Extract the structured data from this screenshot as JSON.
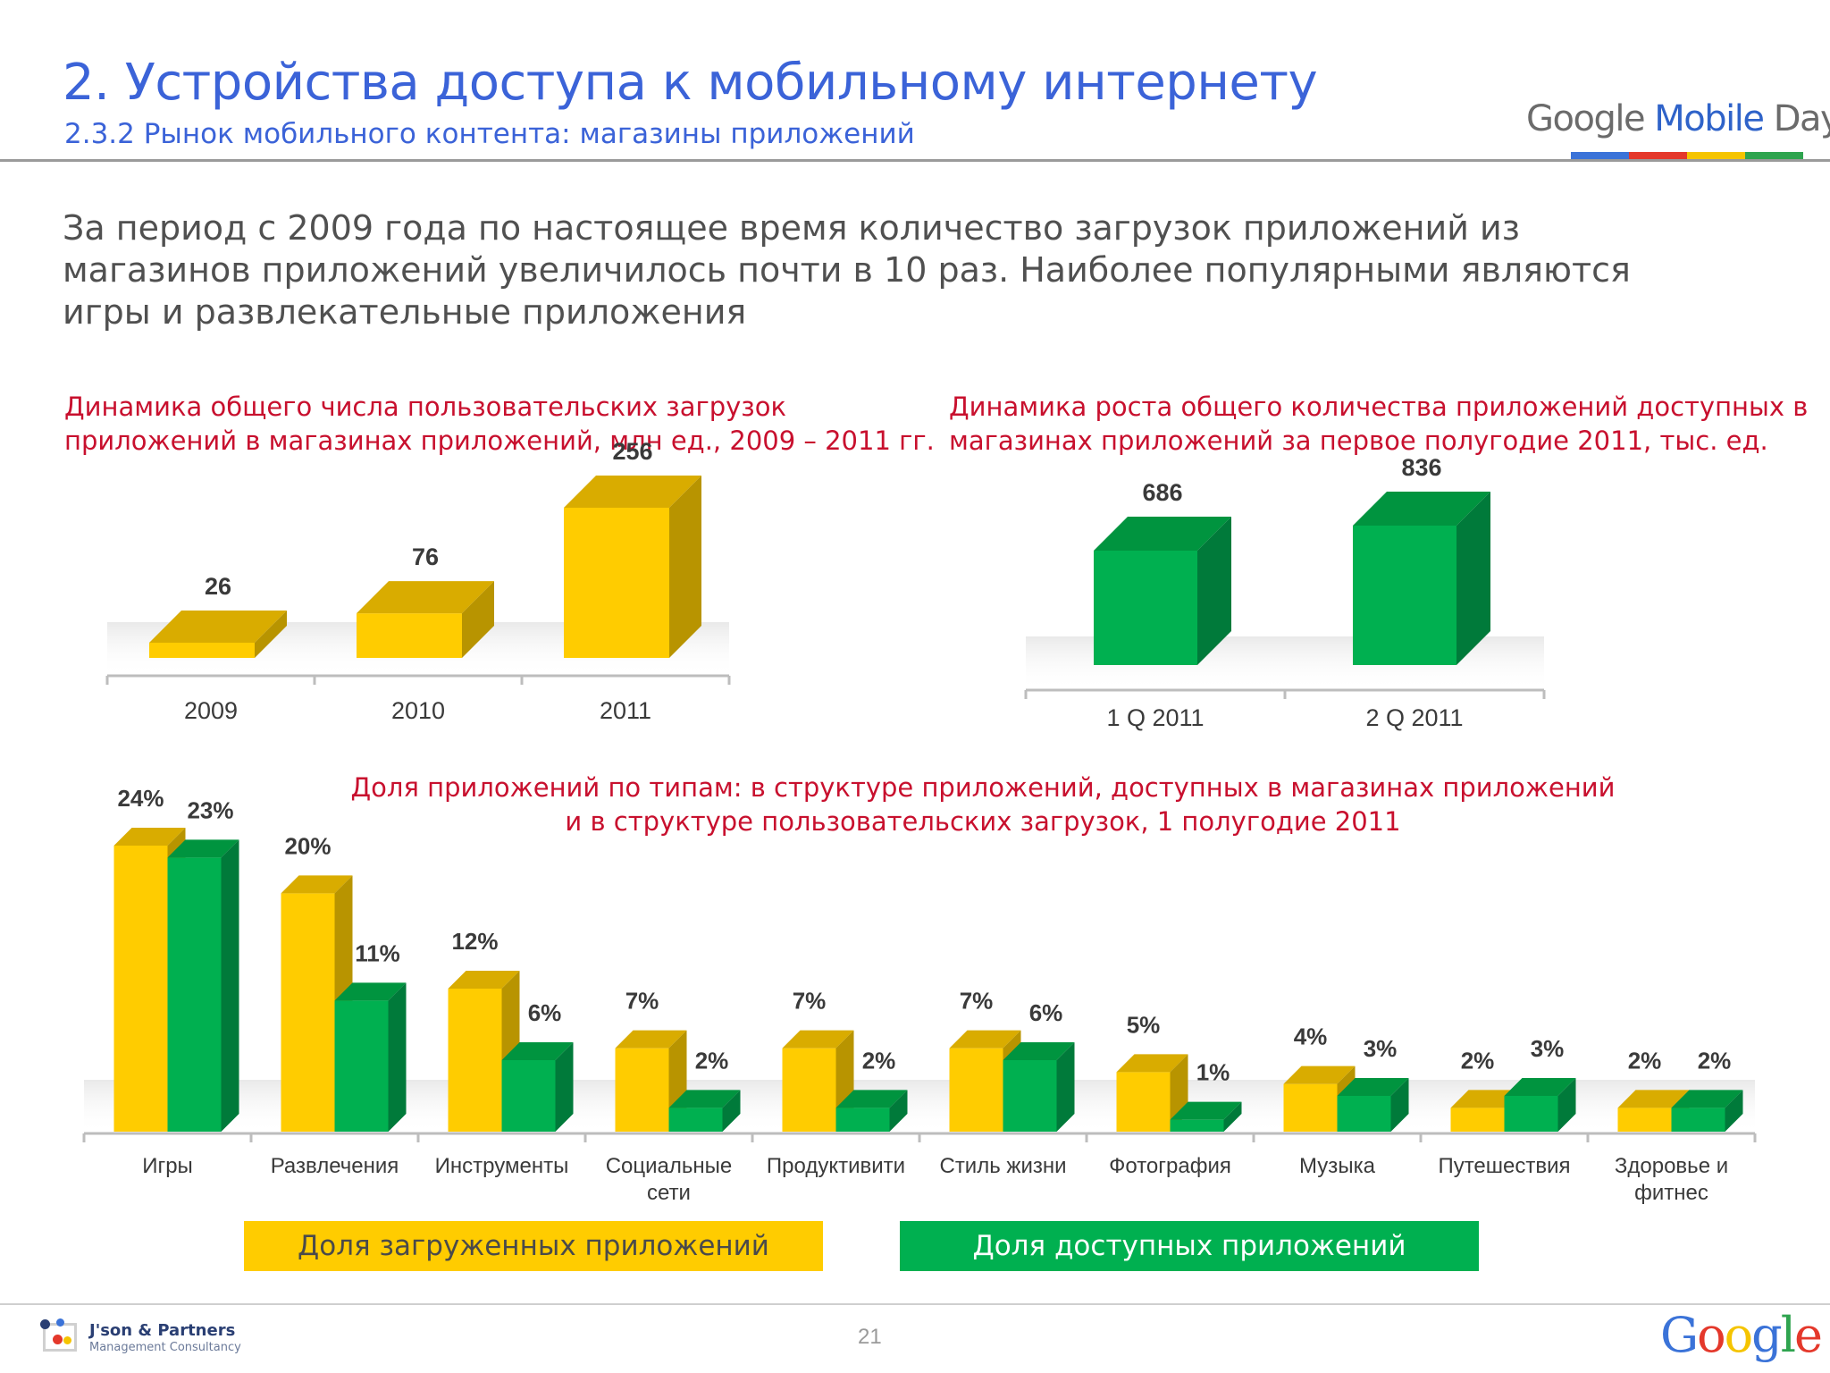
{
  "header": {
    "title": "2. Устройства доступа к мобильному интернету",
    "subtitle": "2.3.2 Рынок мобильного контента: магазины приложений",
    "brand": {
      "google": "Google",
      "mobile": "Mobile",
      "day": "Day"
    }
  },
  "lead_text": "За период с 2009 года по настоящее время количество загрузок приложений из магазинов приложений увеличилось почти в 10 раз. Наиболее популярными являются игры и развлекательные приложения",
  "colors": {
    "yellow": "#ffcc00",
    "yellow_dark": "#b89400",
    "green": "#00b050",
    "green_dark": "#007a3a",
    "accent_red": "#c8102e",
    "accent_blue": "#3b63d8"
  },
  "chart_data": [
    {
      "type": "bar",
      "title_line1": "Динамика общего числа пользовательских загрузок",
      "title_line2": "приложений в магазинах приложений, млн ед., 2009 – 2011 гг.",
      "categories": [
        "2009",
        "2010",
        "2011"
      ],
      "values": [
        26,
        76,
        256
      ],
      "labels": [
        "26",
        "76",
        "256"
      ],
      "ylim": [
        0,
        256
      ]
    },
    {
      "type": "bar",
      "title_line1": "Динамика роста общего количества приложений доступных в",
      "title_line2": "магазинах приложений  за первое полугодие 2011, тыс. ед.",
      "categories": [
        "1 Q 2011",
        "2 Q 2011"
      ],
      "values": [
        686,
        836
      ],
      "labels": [
        "686",
        "836"
      ],
      "ylim": [
        0,
        836
      ]
    },
    {
      "type": "bar",
      "title_line1": "Доля приложений по типам: в структуре приложений, доступных в магазинах приложений",
      "title_line2": "и в структуре пользовательских загрузок, 1 полугодие 2011",
      "categories": [
        [
          "Игры"
        ],
        [
          "Развлечения"
        ],
        [
          "Инструменты"
        ],
        [
          "Социальные",
          "сети"
        ],
        [
          "Продуктивити"
        ],
        [
          "Стиль жизни"
        ],
        [
          "Фотография"
        ],
        [
          "Музыка"
        ],
        [
          "Путешествия"
        ],
        [
          "Здоровье и",
          "фитнес"
        ]
      ],
      "series": [
        {
          "name": "Доля загруженных приложений",
          "values": [
            24,
            20,
            12,
            7,
            7,
            7,
            5,
            4,
            2,
            2
          ],
          "labels": [
            "24%",
            "20%",
            "12%",
            "7%",
            "7%",
            "7%",
            "5%",
            "4%",
            "2%",
            "2%"
          ]
        },
        {
          "name": "Доля доступных приложений",
          "values": [
            23,
            11,
            6,
            2,
            2,
            6,
            1,
            3,
            3,
            2
          ],
          "labels": [
            "23%",
            "11%",
            "6%",
            "2%",
            "2%",
            "6%",
            "1%",
            "3%",
            "3%",
            "2%"
          ]
        }
      ],
      "ylim": [
        0,
        24
      ]
    }
  ],
  "footer": {
    "page_number": "21",
    "partner_name": "J'son & Partners",
    "partner_sub": "Management Consultancy",
    "google_logo": "Google"
  }
}
